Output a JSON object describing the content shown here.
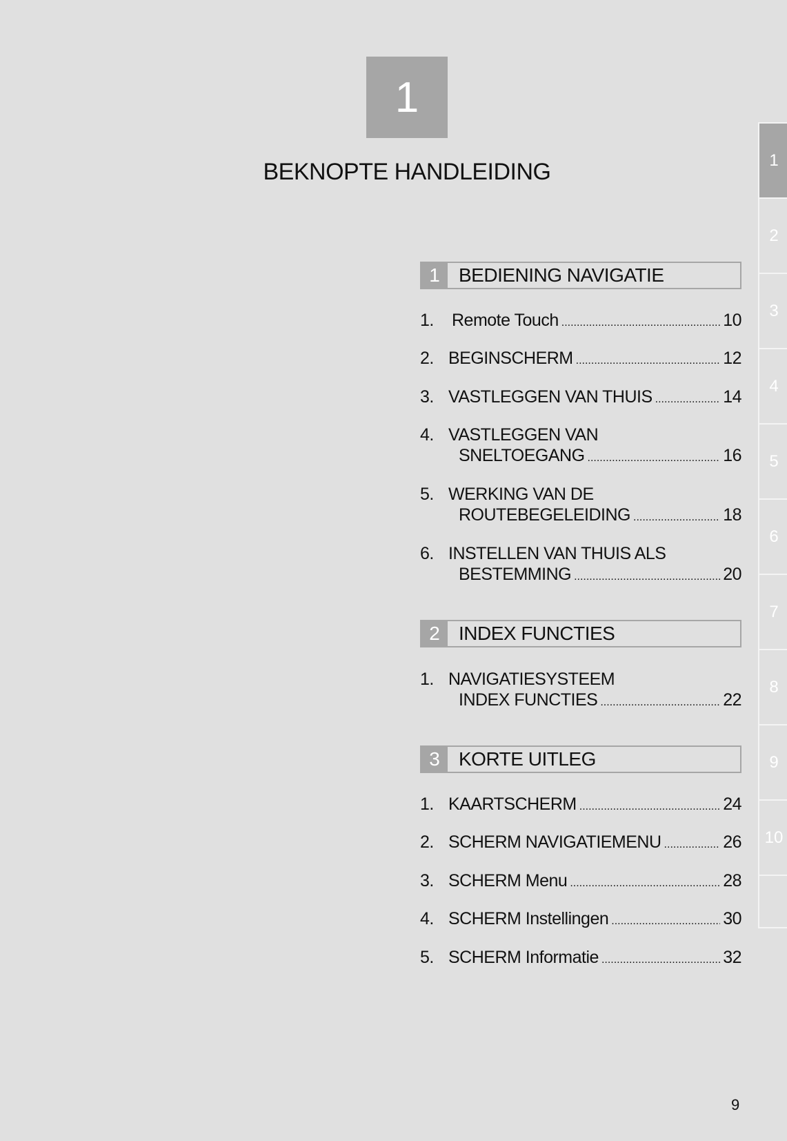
{
  "chapter_number": "1",
  "title": "BEKNOPTE HANDLEIDING",
  "side_tabs": [
    "1",
    "2",
    "3",
    "4",
    "5",
    "6",
    "7",
    "8",
    "9",
    "10",
    ""
  ],
  "active_tab": "1",
  "sections": [
    {
      "number": "1",
      "label": "BEDIENING NAVIGATIE",
      "entries": [
        {
          "n": "1.",
          "line1": "",
          "line2": "Remote Touch",
          "page": "10"
        },
        {
          "n": "2.",
          "line1": "",
          "line2": "BEGINSCHERM",
          "page": "12"
        },
        {
          "n": "3.",
          "line1": "",
          "line2": "VASTLEGGEN VAN THUIS",
          "page": "14"
        },
        {
          "n": "4.",
          "line1": "VASTLEGGEN VAN",
          "line2": "SNELTOEGANG",
          "page": "16"
        },
        {
          "n": "5.",
          "line1": "WERKING VAN DE",
          "line2": "ROUTEBEGELEIDING",
          "page": "18"
        },
        {
          "n": "6.",
          "line1": "INSTELLEN VAN THUIS ALS",
          "line2": "BESTEMMING",
          "page": "20"
        }
      ]
    },
    {
      "number": "2",
      "label": "INDEX FUNCTIES",
      "entries": [
        {
          "n": "1.",
          "line1": "NAVIGATIESYSTEEM",
          "line2": "INDEX FUNCTIES",
          "page": "22"
        }
      ]
    },
    {
      "number": "3",
      "label": "KORTE UITLEG",
      "entries": [
        {
          "n": "1.",
          "line1": "",
          "line2": "KAARTSCHERM",
          "page": "24"
        },
        {
          "n": "2.",
          "line1": "",
          "line2": "SCHERM NAVIGATIEMENU",
          "page": "26"
        },
        {
          "n": "3.",
          "line1": "",
          "line2": "SCHERM Menu",
          "page": "28"
        },
        {
          "n": "4.",
          "line1": "",
          "line2": "SCHERM Instellingen",
          "page": "30"
        },
        {
          "n": "5.",
          "line1": "",
          "line2": "SCHERM Informatie",
          "page": "32"
        }
      ]
    }
  ],
  "page_number": "9"
}
